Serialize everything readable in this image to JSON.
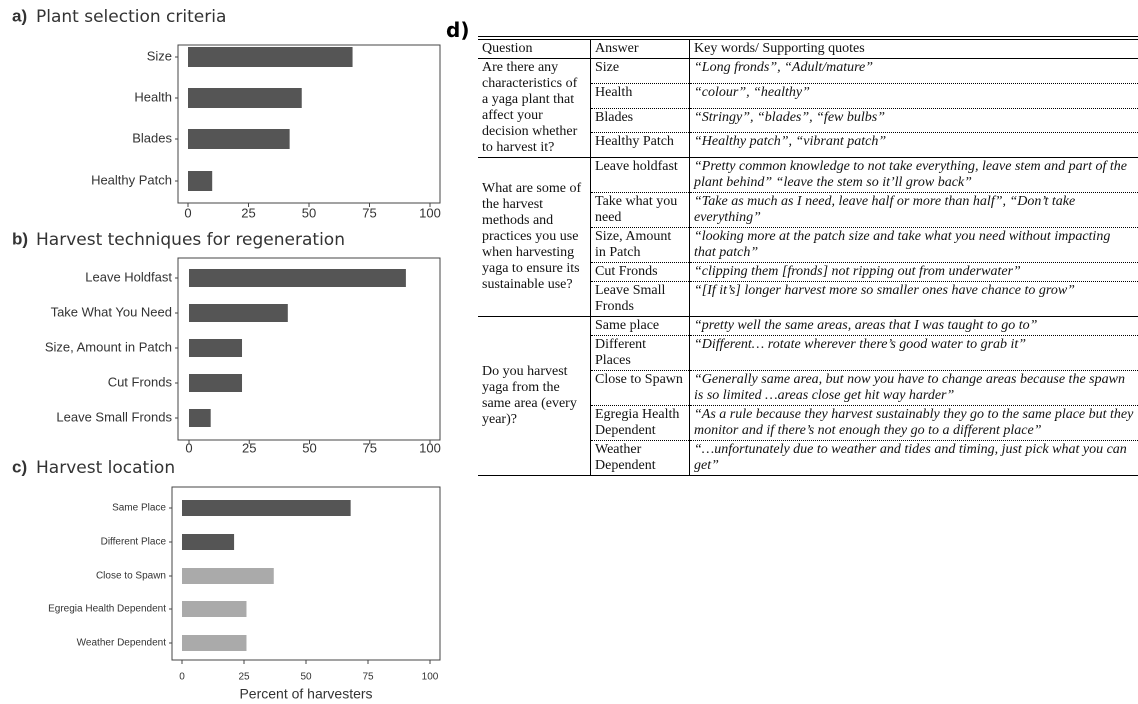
{
  "chart_data": [
    {
      "type": "bar",
      "label": "a)",
      "title": "Plant selection criteria",
      "categories": [
        "Size",
        "Health",
        "Blades",
        "Healthy Patch"
      ],
      "values": [
        68,
        47,
        42,
        10
      ],
      "colors": [
        "#555555",
        "#555555",
        "#555555",
        "#555555"
      ],
      "xlim": [
        0,
        100
      ],
      "xticks": [
        0,
        25,
        50,
        75,
        100
      ]
    },
    {
      "type": "bar",
      "label": "b)",
      "title": "Harvest techniques for regeneration",
      "categories": [
        "Leave Holdfast",
        "Take What You Need",
        "Size, Amount in Patch",
        "Cut Fronds",
        "Leave Small Fronds"
      ],
      "values": [
        90,
        41,
        22,
        22,
        9
      ],
      "colors": [
        "#555555",
        "#555555",
        "#555555",
        "#555555",
        "#555555"
      ],
      "xlim": [
        0,
        100
      ],
      "xticks": [
        0,
        25,
        50,
        75,
        100
      ]
    },
    {
      "type": "bar",
      "label": "c)",
      "title": "Harvest location",
      "x_label": "Percent of harvesters",
      "categories": [
        "Same Place",
        "Different Place",
        "Close to Spawn",
        "Egregia Health Dependent",
        "Weather Dependent"
      ],
      "values": [
        68,
        21,
        37,
        26,
        26
      ],
      "colors": [
        "#555555",
        "#555555",
        "#aaaaaa",
        "#aaaaaa",
        "#aaaaaa"
      ],
      "xlim": [
        0,
        100
      ],
      "xticks": [
        0,
        25,
        50,
        75,
        100
      ]
    }
  ],
  "table": {
    "label": "d)",
    "header": [
      "Question",
      "Answer",
      "Key words/ Supporting quotes"
    ],
    "groups": [
      {
        "question": "Are there any characteristics of a yaga plant that affect your decision whether to harvest it?",
        "rows": [
          {
            "answer": "Size",
            "quote": "“Long fronds”, “Adult/mature”"
          },
          {
            "answer": "Health",
            "quote": "“colour”, “healthy”"
          },
          {
            "answer": "Blades",
            "quote": "“Stringy”, “blades”, “few bulbs”"
          },
          {
            "answer": "Healthy Patch",
            "quote": "“Healthy patch”, “vibrant patch”"
          }
        ]
      },
      {
        "question": "What are some of the harvest methods and practices you use when harvesting yaga to ensure its sustainable use?",
        "rows": [
          {
            "answer": "Leave holdfast",
            "quote": "“Pretty common knowledge to not take everything, leave stem and part of the plant behind” “leave the stem so it’ll grow back”"
          },
          {
            "answer": "Take what you need",
            "quote": "“Take as much as I need, leave half or more than half”, “Don’t take everything”"
          },
          {
            "answer": "Size, Amount in Patch",
            "quote": "“looking more at the patch size and take what you need without impacting that patch”"
          },
          {
            "answer": "Cut Fronds",
            "quote": "“clipping them [fronds] not ripping out from underwater”"
          },
          {
            "answer": "Leave Small Fronds",
            "quote": "“[If it’s] longer harvest more so smaller ones have chance to grow”"
          }
        ]
      },
      {
        "question": "Do you harvest yaga from the same area (every year)?",
        "rows": [
          {
            "answer": "Same place",
            "quote": "“pretty well the same areas, areas that I was taught to go to”"
          },
          {
            "answer": "Different Places",
            "quote": "“Different… rotate wherever there’s good water to grab it”"
          },
          {
            "answer": "Close to Spawn",
            "quote": "“Generally same area, but now you have to change areas because the spawn is so limited …areas close get hit way harder”"
          },
          {
            "answer": "Egregia Health Dependent",
            "quote": "“As a rule because they harvest sustainably they go to the same place but they monitor and if there’s not enough they go to a different place”"
          },
          {
            "answer": "Weather Dependent",
            "quote": "“…unfortunately due to weather and tides and timing, just pick what you can get”"
          }
        ]
      }
    ]
  }
}
